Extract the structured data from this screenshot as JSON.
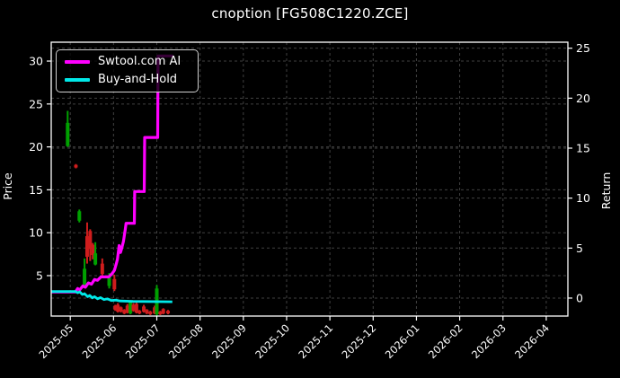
{
  "title": "cnoption [FG508C1220.ZCE]",
  "chart_data": {
    "type": "line",
    "subtype": "candlestick-with-equity-curves",
    "title": "cnoption [FG508C1220.ZCE]",
    "ylabel": "Price",
    "y2label": "Return",
    "background": "#000000",
    "grid": {
      "on": true,
      "style": "dashed",
      "color": "#414141"
    },
    "legend_position": "upper-left",
    "x_axis": {
      "tick_labels": [
        "2025-05",
        "2025-06",
        "2025-07",
        "2025-08",
        "2025-09",
        "2025-10",
        "2025-11",
        "2025-12",
        "2026-01",
        "2026-02",
        "2026-03",
        "2026-04"
      ],
      "tick_positions": [
        0,
        1,
        2,
        3,
        4,
        5,
        6,
        7,
        8,
        9,
        10,
        11
      ],
      "range": [
        -0.44,
        11.5
      ],
      "label_rotation_deg": 45
    },
    "price_axis": {
      "side": "left",
      "ticks": [
        5,
        10,
        15,
        20,
        25,
        30
      ],
      "range": [
        0.29,
        32.2
      ]
    },
    "return_axis": {
      "side": "right",
      "ticks": [
        0,
        5,
        10,
        15,
        20,
        25
      ],
      "range": [
        -1.8,
        25.6
      ]
    },
    "colors": {
      "ai_line": "#ff00ff",
      "bh_line": "#00e8e8",
      "candle_up": "#00a000",
      "candle_down": "#cf1d1d",
      "spine": "#ffffff",
      "text": "#ffffff",
      "grid": "#414141"
    },
    "series": [
      {
        "name": "Swtool.com AI",
        "color_key": "ai_line",
        "width": 3.2,
        "points": [
          [
            -0.43,
            3.1
          ],
          [
            0.12,
            3.1
          ],
          [
            0.17,
            3.5
          ],
          [
            0.22,
            3.35
          ],
          [
            0.29,
            3.8
          ],
          [
            0.35,
            3.65
          ],
          [
            0.42,
            4.15
          ],
          [
            0.49,
            4.0
          ],
          [
            0.56,
            4.55
          ],
          [
            0.63,
            4.45
          ],
          [
            0.71,
            4.85
          ],
          [
            0.89,
            4.85
          ],
          [
            0.96,
            5.2
          ],
          [
            1.02,
            5.6
          ],
          [
            1.06,
            6.3
          ],
          [
            1.09,
            6.9
          ],
          [
            1.13,
            8.5
          ],
          [
            1.16,
            7.7
          ],
          [
            1.19,
            8.2
          ],
          [
            1.23,
            9.0
          ],
          [
            1.27,
            10.3
          ],
          [
            1.29,
            11.1
          ],
          [
            1.48,
            11.1
          ],
          [
            1.49,
            14.8
          ],
          [
            1.71,
            14.8
          ],
          [
            1.72,
            21.1
          ],
          [
            2.02,
            21.1
          ],
          [
            2.03,
            30.6
          ],
          [
            2.38,
            30.6
          ]
        ]
      },
      {
        "name": "Buy-and-Hold",
        "color_key": "bh_line",
        "width": 2.8,
        "points": [
          [
            -0.43,
            3.15
          ],
          [
            0.12,
            3.15
          ],
          [
            0.17,
            3.0
          ],
          [
            0.22,
            3.1
          ],
          [
            0.28,
            2.8
          ],
          [
            0.33,
            2.9
          ],
          [
            0.4,
            2.55
          ],
          [
            0.45,
            2.7
          ],
          [
            0.51,
            2.4
          ],
          [
            0.56,
            2.55
          ],
          [
            0.63,
            2.3
          ],
          [
            0.7,
            2.45
          ],
          [
            0.78,
            2.2
          ],
          [
            0.86,
            2.3
          ],
          [
            0.95,
            2.1
          ],
          [
            1.06,
            2.15
          ],
          [
            1.15,
            2.05
          ],
          [
            1.45,
            2.0
          ],
          [
            2.36,
            1.95
          ]
        ]
      }
    ],
    "candles": [
      [
        -0.06,
        24.2,
        20.0,
        22.8,
        20.1,
        "up"
      ],
      [
        0.13,
        18.0,
        17.5,
        17.9,
        17.6,
        "down"
      ],
      [
        0.21,
        12.7,
        11.2,
        12.5,
        11.4,
        "up"
      ],
      [
        0.33,
        7.0,
        3.6,
        5.8,
        3.8,
        "up"
      ],
      [
        0.39,
        11.2,
        6.4,
        9.6,
        7.2,
        "down"
      ],
      [
        0.46,
        10.4,
        6.7,
        10.2,
        8.1,
        "down"
      ],
      [
        0.52,
        8.8,
        6.9,
        8.6,
        7.4,
        "down"
      ],
      [
        0.58,
        8.9,
        6.2,
        7.6,
        6.3,
        "up"
      ],
      [
        0.74,
        7.0,
        4.9,
        6.4,
        5.2,
        "down"
      ],
      [
        0.9,
        5.3,
        3.5,
        5.0,
        3.8,
        "up"
      ],
      [
        1.02,
        5.1,
        3.2,
        4.6,
        3.4,
        "down"
      ],
      [
        1.04,
        1.6,
        0.9,
        1.5,
        1.0,
        "down"
      ],
      [
        1.1,
        1.8,
        0.7,
        1.6,
        0.8,
        "down"
      ],
      [
        1.17,
        1.4,
        0.7,
        1.3,
        0.8,
        "down"
      ],
      [
        1.25,
        1.1,
        0.5,
        1.0,
        0.6,
        "down"
      ],
      [
        1.32,
        1.7,
        0.6,
        1.5,
        0.7,
        "down"
      ],
      [
        1.39,
        2.1,
        0.5,
        1.9,
        0.6,
        "up"
      ],
      [
        1.46,
        1.8,
        0.8,
        1.6,
        0.9,
        "down"
      ],
      [
        1.53,
        2.0,
        0.6,
        1.7,
        0.7,
        "down"
      ],
      [
        1.6,
        1.0,
        0.5,
        0.9,
        0.6,
        "down"
      ],
      [
        1.7,
        1.6,
        0.7,
        1.4,
        0.8,
        "down"
      ],
      [
        1.77,
        1.1,
        0.5,
        1.0,
        0.6,
        "down"
      ],
      [
        1.85,
        0.9,
        0.4,
        0.8,
        0.5,
        "down"
      ],
      [
        1.95,
        1.5,
        0.5,
        1.3,
        0.6,
        "down"
      ],
      [
        2.0,
        3.9,
        0.3,
        3.5,
        0.5,
        "up"
      ],
      [
        2.08,
        0.9,
        0.4,
        0.8,
        0.5,
        "down"
      ],
      [
        2.15,
        1.2,
        0.5,
        1.1,
        0.6,
        "down"
      ],
      [
        2.26,
        1.0,
        0.5,
        0.9,
        0.6,
        "down"
      ]
    ]
  }
}
